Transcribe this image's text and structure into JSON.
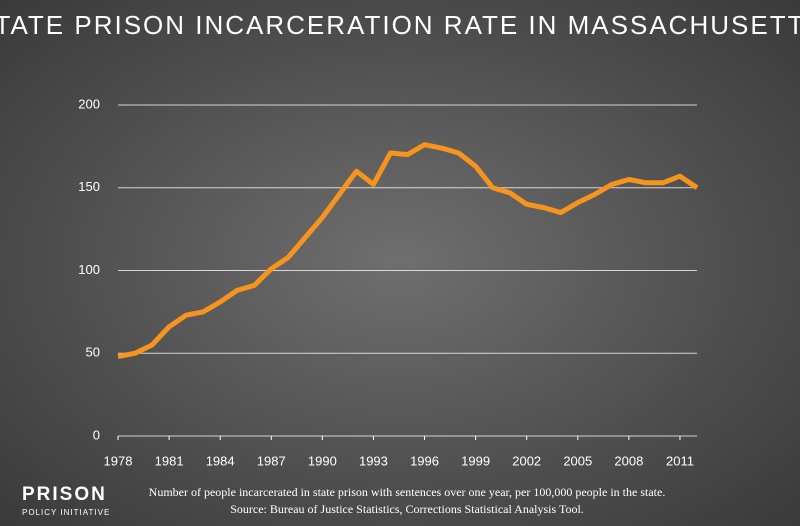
{
  "chart_data": {
    "type": "line",
    "title": "STATE PRISON INCARCERATION RATE IN MASSACHUSETTS",
    "caption": "Number of people incarcerated in state prison with sentences over one year, per 100,000 people in the state.",
    "source": "Source: Bureau of Justice Statistics, Corrections Statistical Analysis Tool.",
    "x": [
      1978,
      1979,
      1980,
      1981,
      1982,
      1983,
      1984,
      1985,
      1986,
      1987,
      1988,
      1989,
      1990,
      1991,
      1992,
      1993,
      1994,
      1995,
      1996,
      1997,
      1998,
      1999,
      2000,
      2001,
      2002,
      2003,
      2004,
      2005,
      2006,
      2007,
      2008,
      2009,
      2010,
      2011,
      2012
    ],
    "series": [
      {
        "color": "#f7941d",
        "values": [
          48,
          50,
          55,
          66,
          73,
          75,
          81,
          88,
          91,
          101,
          108,
          120,
          132,
          146,
          160,
          152,
          171,
          170,
          176,
          174,
          171,
          163,
          150,
          147,
          140,
          138,
          135,
          141,
          146,
          152,
          155,
          153,
          153,
          157,
          150
        ]
      }
    ],
    "xlim": [
      1978,
      2012
    ],
    "xticks": [
      1978,
      1981,
      1984,
      1987,
      1990,
      1993,
      1996,
      1999,
      2002,
      2005,
      2008,
      2011
    ],
    "ylim": [
      0,
      200
    ],
    "yticks": [
      0,
      50,
      100,
      150,
      200
    ],
    "grid": true
  },
  "logo": {
    "line1": "PRISON",
    "line2": "POLICY INITIATIVE"
  }
}
